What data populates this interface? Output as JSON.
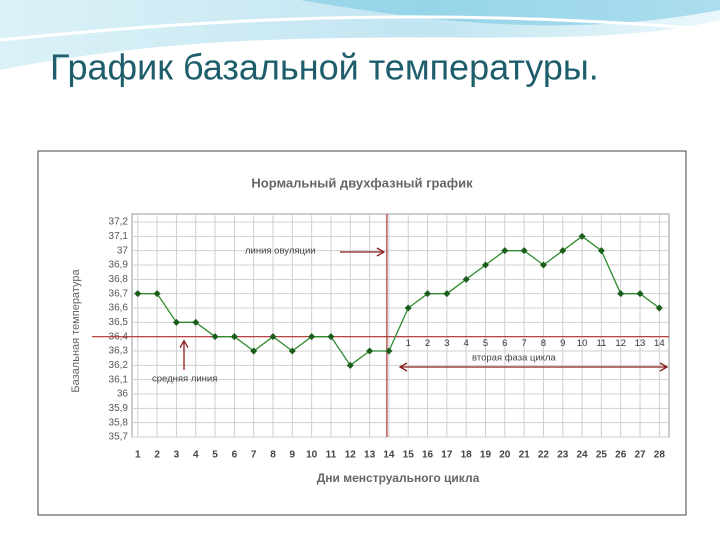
{
  "slide_title": "График базальной температуры.",
  "chart_data": {
    "type": "line",
    "title": "Нормальный двухфазный график",
    "x_label": "Дни менструального цикла",
    "y_label": "Базальная температура",
    "x": [
      1,
      2,
      3,
      4,
      5,
      6,
      7,
      8,
      9,
      10,
      11,
      12,
      13,
      14,
      15,
      16,
      17,
      18,
      19,
      20,
      21,
      22,
      23,
      24,
      25,
      26,
      27,
      28
    ],
    "series": [
      {
        "color": "#2e8b2e",
        "values": [
          36.7,
          36.7,
          36.5,
          36.5,
          36.4,
          36.4,
          36.3,
          36.4,
          36.3,
          36.4,
          36.4,
          36.2,
          36.3,
          36.3,
          36.6,
          36.7,
          36.7,
          36.8,
          36.9,
          37.0,
          37.0,
          36.9,
          37.0,
          37.1,
          37.0,
          36.7,
          36.7,
          36.6
        ]
      }
    ],
    "xlim": [
      0.7,
      28.5
    ],
    "xticks": [
      1,
      2,
      3,
      4,
      5,
      6,
      7,
      8,
      9,
      10,
      11,
      12,
      13,
      14,
      15,
      16,
      17,
      18,
      19,
      20,
      21,
      22,
      23,
      24,
      25,
      26,
      27,
      28
    ],
    "ylim": [
      35.7,
      37.2
    ],
    "yticks": [
      35.7,
      35.8,
      35.9,
      36,
      36.1,
      36.2,
      36.3,
      36.4,
      36.5,
      36.6,
      36.7,
      36.8,
      36.9,
      37,
      37.1,
      37.2
    ],
    "ytick_labels": [
      "35,7",
      "35,8",
      "35,9",
      "36",
      "36,1",
      "36,2",
      "36,3",
      "36,4",
      "36,5",
      "36,6",
      "36,7",
      "36,8",
      "36,9",
      "37",
      "37,1",
      "37,2"
    ],
    "grid": true,
    "cover_line": {
      "value": 36.4,
      "label": "средняя линия"
    },
    "ovulation_line": {
      "x": 14,
      "label": "линия овуляции"
    },
    "second_phase": {
      "label": "вторая фаза цикла",
      "day_numbers": [
        1,
        2,
        3,
        4,
        5,
        6,
        7,
        8,
        9,
        10,
        11,
        12,
        13,
        14
      ]
    }
  }
}
